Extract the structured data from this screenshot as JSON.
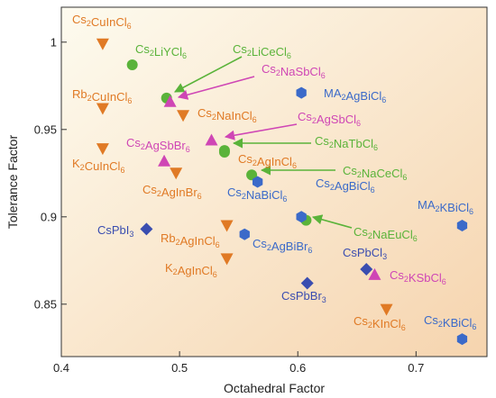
{
  "chart_data": {
    "type": "scatter",
    "title": "",
    "xlabel": "Octahedral Factor",
    "ylabel": "Tolerance Factor",
    "xlim": [
      0.4,
      0.76
    ],
    "ylim": [
      0.82,
      1.02
    ],
    "xticks": [
      "0.4",
      "0.5",
      "0.6",
      "0.7"
    ],
    "yticks": [
      "0.85",
      "0.9",
      "0.95",
      "1"
    ],
    "grid": false,
    "colors": {
      "triangle_down": "#e07a25",
      "circle": "#5ab33a",
      "triangle_up": "#cf46b5",
      "diamond": "#3a4db0",
      "hexagon": "#3b6ac9",
      "background_top_left": "#fdfbef",
      "background_bottom_right": "#f6d4ae"
    },
    "series": [
      {
        "marker": "triangle_down",
        "points": [
          {
            "label": "Cs2CuInCl6",
            "x": 0.435,
            "y": 0.999
          },
          {
            "label": "Rb2CuInCl6",
            "x": 0.435,
            "y": 0.962
          },
          {
            "label": "Cs2NaInCl6",
            "x": 0.503,
            "y": 0.958
          },
          {
            "label": "K2CuInCl6",
            "x": 0.435,
            "y": 0.939
          },
          {
            "label": "Cs2AgInBr6",
            "x": 0.497,
            "y": 0.925
          },
          {
            "label": "Rb2AgInCl6",
            "x": 0.54,
            "y": 0.895
          },
          {
            "label": "K2AgInCl6",
            "x": 0.54,
            "y": 0.876
          },
          {
            "label": "Cs2KInCl6",
            "x": 0.675,
            "y": 0.847
          }
        ]
      },
      {
        "marker": "circle",
        "points": [
          {
            "label": "Cs2LiYCl6",
            "x": 0.46,
            "y": 0.987
          },
          {
            "label": "Cs2LiCeCl6",
            "x": 0.489,
            "y": 0.968
          },
          {
            "label": "Cs2NaTbCl6",
            "x": 0.538,
            "y": 0.938
          },
          {
            "label": "Cs2AgInCl6",
            "x": 0.538,
            "y": 0.937
          },
          {
            "label": "Cs2NaCeCl6",
            "x": 0.561,
            "y": 0.924
          },
          {
            "label": "Cs2NaEuCl6",
            "x": 0.607,
            "y": 0.898
          }
        ]
      },
      {
        "marker": "triangle_up",
        "points": [
          {
            "label": "Cs2NaSbCl6",
            "x": 0.492,
            "y": 0.966
          },
          {
            "label": "Cs2AgSbCl6",
            "x": 0.527,
            "y": 0.944
          },
          {
            "label": "Cs2AgSbBr6",
            "x": 0.487,
            "y": 0.932
          },
          {
            "label": "Cs2KSbCl6",
            "x": 0.665,
            "y": 0.867
          }
        ]
      },
      {
        "marker": "diamond",
        "points": [
          {
            "label": "CsPbI3",
            "x": 0.472,
            "y": 0.893
          },
          {
            "label": "CsPbBr3",
            "x": 0.608,
            "y": 0.862
          },
          {
            "label": "CsPbCl3",
            "x": 0.658,
            "y": 0.87
          }
        ]
      },
      {
        "marker": "hexagon",
        "points": [
          {
            "label": "MA2AgBiCl6",
            "x": 0.603,
            "y": 0.971
          },
          {
            "label": "Cs2NaBiCl6",
            "x": 0.566,
            "y": 0.92
          },
          {
            "label": "Cs2AgBiCl6",
            "x": 0.603,
            "y": 0.9
          },
          {
            "label": "Cs2AgBiBr6",
            "x": 0.555,
            "y": 0.89
          },
          {
            "label": "MA2KBiCl6",
            "x": 0.739,
            "y": 0.895
          },
          {
            "label": "Cs2KBiCl6",
            "x": 0.739,
            "y": 0.83
          }
        ]
      }
    ],
    "annotations": [
      {
        "text": "Cs2CuInCl6",
        "color": "#e07a25"
      },
      {
        "text": "Cs2LiYCl6",
        "color": "#5ab33a"
      },
      {
        "text": "Cs2LiCeCl6",
        "color": "#5ab33a"
      },
      {
        "text": "Cs2NaSbCl6",
        "color": "#cf46b5"
      },
      {
        "text": "MA2AgBiCl6",
        "color": "#3b6ac9"
      },
      {
        "text": "Rb2CuInCl6",
        "color": "#e07a25"
      },
      {
        "text": "Cs2NaInCl6",
        "color": "#e07a25"
      },
      {
        "text": "Cs2AgSbCl6",
        "color": "#cf46b5"
      },
      {
        "text": "Cs2AgSbBr6",
        "color": "#cf46b5"
      },
      {
        "text": "Cs2NaTbCl6",
        "color": "#5ab33a"
      },
      {
        "text": "K2CuInCl6",
        "color": "#e07a25"
      },
      {
        "text": "Cs2AgInCl6",
        "color": "#e07a25"
      },
      {
        "text": "Cs2NaCeCl6",
        "color": "#5ab33a"
      },
      {
        "text": "Cs2AgInBr6",
        "color": "#e07a25"
      },
      {
        "text": "Cs2NaBiCl6",
        "color": "#3b6ac9"
      },
      {
        "text": "Cs2AgBiCl6",
        "color": "#3b6ac9"
      },
      {
        "text": "MA2KBiCl6",
        "color": "#3b6ac9"
      },
      {
        "text": "CsPbI3",
        "color": "#3a4db0"
      },
      {
        "text": "Rb2AgInCl6",
        "color": "#e07a25"
      },
      {
        "text": "Cs2AgBiBr6",
        "color": "#3b6ac9"
      },
      {
        "text": "Cs2NaEuCl6",
        "color": "#5ab33a"
      },
      {
        "text": "CsPbCl3",
        "color": "#3a4db0"
      },
      {
        "text": "K2AgInCl6",
        "color": "#e07a25"
      },
      {
        "text": "Cs2KSbCl6",
        "color": "#cf46b5"
      },
      {
        "text": "CsPbBr3",
        "color": "#3a4db0"
      },
      {
        "text": "Cs2KInCl6",
        "color": "#e07a25"
      },
      {
        "text": "Cs2KBiCl6",
        "color": "#3b6ac9"
      }
    ]
  }
}
